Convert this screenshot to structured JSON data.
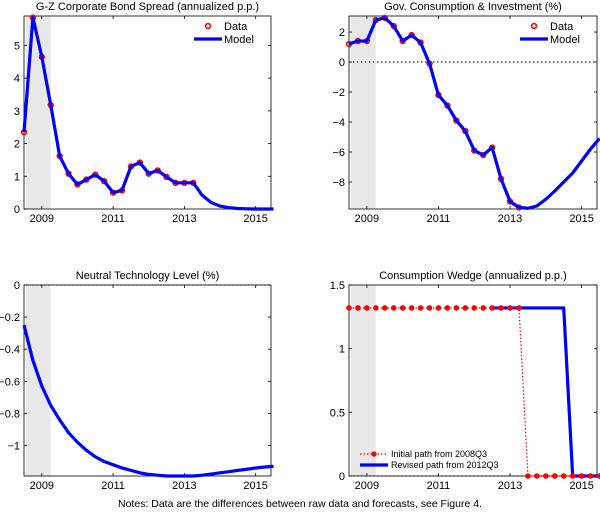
{
  "footnote": "Notes: Data are the differences between raw data and forecasts, see Figure 4.",
  "colors": {
    "model": "#0000ff",
    "data": "#ff0000",
    "shade": "#e8e8e8"
  },
  "chart_data": [
    {
      "type": "line",
      "title": "G-Z Corporate Bond Spread (annualized p.p.)",
      "xlim": [
        2008.5,
        2015.43
      ],
      "ylim": [
        0,
        5.9
      ],
      "xticks": [
        2009,
        2011,
        2013,
        2015
      ],
      "yticks": [
        0,
        1,
        2,
        3,
        4,
        5
      ],
      "recession": [
        2008.55,
        2009.25
      ],
      "zero_line": false,
      "legend": {
        "placement": "top-right",
        "entries": [
          "Data",
          "Model"
        ]
      },
      "series": [
        {
          "name": "Data",
          "style": "markers",
          "x0": 2008.5,
          "step": 0.25,
          "values": [
            2.35,
            5.85,
            4.65,
            3.18,
            1.62,
            1.08,
            0.75,
            0.9,
            1.05,
            0.85,
            0.5,
            0.57,
            1.3,
            1.42,
            1.08,
            1.18,
            0.98,
            0.8,
            0.8,
            0.8
          ]
        },
        {
          "name": "Model",
          "style": "line",
          "x0": 2008.5,
          "step": 0.25,
          "values": [
            2.35,
            5.85,
            4.65,
            3.18,
            1.62,
            1.08,
            0.75,
            0.9,
            1.05,
            0.85,
            0.5,
            0.57,
            1.3,
            1.42,
            1.08,
            1.18,
            0.98,
            0.8,
            0.8,
            0.8,
            0.42,
            0.2,
            0.09,
            0.04,
            0.015,
            0.005,
            0,
            0,
            0
          ]
        }
      ]
    },
    {
      "type": "line",
      "title": "Gov. Consumption & Investment (%)",
      "xlim": [
        2008.5,
        2015.43
      ],
      "ylim": [
        -9.8,
        3.07
      ],
      "xticks": [
        2009,
        2011,
        2013,
        2015
      ],
      "yticks": [
        -8,
        -6,
        -4,
        -2,
        0,
        2
      ],
      "recession": [
        2008.55,
        2009.25
      ],
      "zero_line": true,
      "legend": {
        "placement": "top-right",
        "entries": [
          "Data",
          "Model"
        ]
      },
      "series": [
        {
          "name": "Data",
          "style": "markers",
          "x0": 2008.5,
          "step": 0.25,
          "values": [
            1.2,
            1.4,
            1.4,
            2.8,
            2.95,
            2.4,
            1.4,
            1.8,
            1.3,
            -0.1,
            -2.2,
            -2.9,
            -3.9,
            -4.6,
            -5.9,
            -6.2,
            -5.7,
            -7.8,
            -9.3,
            -9.7
          ]
        },
        {
          "name": "Model",
          "style": "line",
          "x0": 2008.5,
          "step": 0.25,
          "values": [
            1.2,
            1.4,
            1.4,
            2.8,
            2.95,
            2.4,
            1.4,
            1.8,
            1.3,
            -0.1,
            -2.2,
            -2.9,
            -3.9,
            -4.6,
            -5.9,
            -6.2,
            -5.7,
            -7.8,
            -9.3,
            -9.7,
            -9.75,
            -9.6,
            -9.15,
            -8.6,
            -8.0,
            -7.4,
            -6.6,
            -5.8,
            -5.1
          ]
        }
      ]
    },
    {
      "type": "line",
      "title": "Neutral Technology Level (%)",
      "xlim": [
        2008.5,
        2015.43
      ],
      "ylim": [
        -1.19,
        0
      ],
      "xticks": [
        2009,
        2011,
        2013,
        2015
      ],
      "yticks": [
        -1,
        -0.8,
        -0.6,
        -0.4,
        -0.2,
        0
      ],
      "recession": [
        2008.55,
        2009.25
      ],
      "zero_line": true,
      "legend": null,
      "series": [
        {
          "name": "Model",
          "style": "line",
          "x0": 2008.5,
          "step": 0.25,
          "values": [
            -0.25,
            -0.47,
            -0.63,
            -0.75,
            -0.84,
            -0.92,
            -0.98,
            -1.03,
            -1.07,
            -1.1,
            -1.12,
            -1.14,
            -1.155,
            -1.17,
            -1.18,
            -1.185,
            -1.19,
            -1.19,
            -1.19,
            -1.19,
            -1.185,
            -1.178,
            -1.17,
            -1.163,
            -1.155,
            -1.148,
            -1.14,
            -1.134,
            -1.13
          ]
        }
      ]
    },
    {
      "type": "line",
      "title": "Consumption Wedge (annualized p.p.)",
      "xlim": [
        2008.5,
        2015.43
      ],
      "ylim": [
        0,
        1.5
      ],
      "xticks": [
        2009,
        2011,
        2013,
        2015
      ],
      "yticks": [
        0,
        0.5,
        1,
        1.5
      ],
      "recession": [
        2008.55,
        2009.25
      ],
      "zero_line": true,
      "legend": {
        "placement": "bottom-left",
        "entries": [
          "Initial path from 2008Q3",
          "Revised path from 2012Q3"
        ]
      },
      "series": [
        {
          "name": "Revised path from 2012Q3",
          "style": "line",
          "x0": 2012.5,
          "step": 0.25,
          "values": [
            1.32,
            1.32,
            1.32,
            1.32,
            1.32,
            1.32,
            1.32,
            1.32,
            1.32,
            0,
            0,
            0,
            0
          ]
        },
        {
          "name": "Initial path from 2008Q3",
          "style": "dotted-markers",
          "x0": 2008.5,
          "step": 0.25,
          "values": [
            1.32,
            1.32,
            1.32,
            1.32,
            1.32,
            1.32,
            1.32,
            1.32,
            1.32,
            1.32,
            1.32,
            1.32,
            1.32,
            1.32,
            1.32,
            1.32,
            1.32,
            1.32,
            1.32,
            1.32,
            0,
            0,
            0,
            0,
            0,
            0,
            0,
            0,
            0
          ]
        }
      ]
    }
  ]
}
